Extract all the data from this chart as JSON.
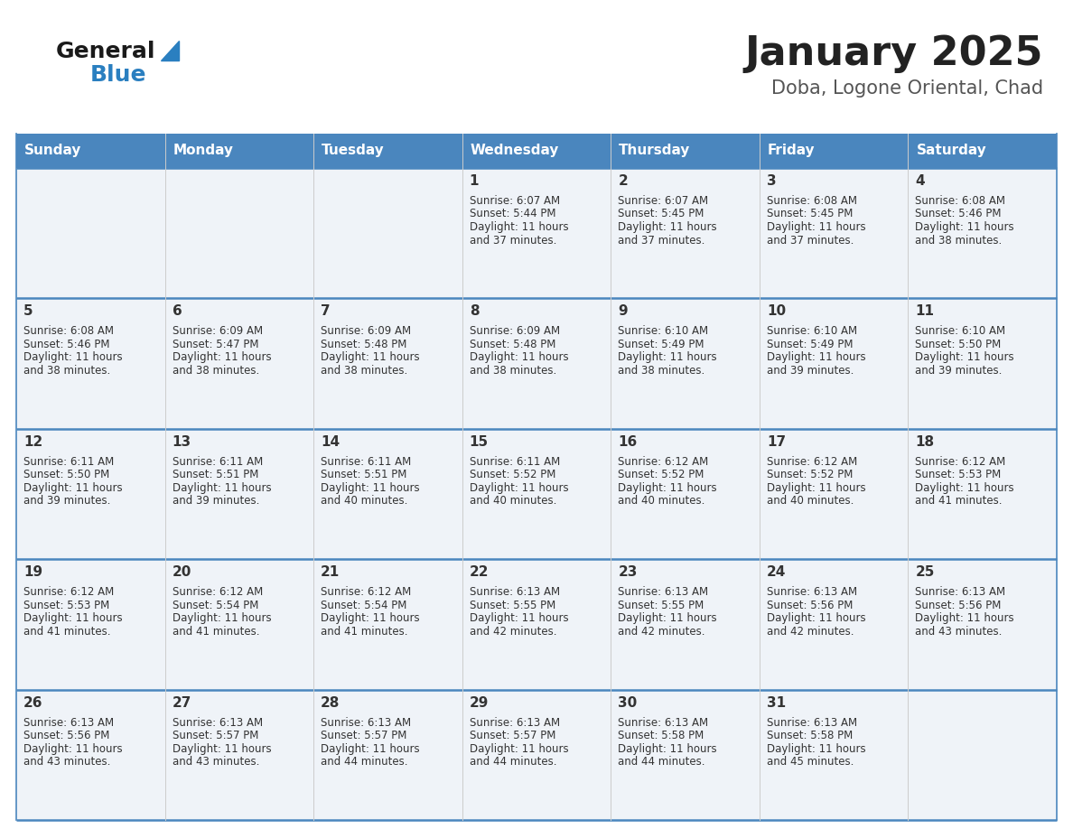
{
  "title": "January 2025",
  "subtitle": "Doba, Logone Oriental, Chad",
  "header_bg_color": "#4a86be",
  "header_text_color": "#ffffff",
  "cell_bg_color": "#eff3f8",
  "border_color": "#4a86be",
  "row_border_color": "#4a86be",
  "text_color": "#333333",
  "days_of_week": [
    "Sunday",
    "Monday",
    "Tuesday",
    "Wednesday",
    "Thursday",
    "Friday",
    "Saturday"
  ],
  "calendar_data": [
    [
      {
        "day": "",
        "sunrise": "",
        "sunset": "",
        "daylight1": "",
        "daylight2": ""
      },
      {
        "day": "",
        "sunrise": "",
        "sunset": "",
        "daylight1": "",
        "daylight2": ""
      },
      {
        "day": "",
        "sunrise": "",
        "sunset": "",
        "daylight1": "",
        "daylight2": ""
      },
      {
        "day": "1",
        "sunrise": "6:07 AM",
        "sunset": "5:44 PM",
        "daylight1": "11 hours",
        "daylight2": "and 37 minutes."
      },
      {
        "day": "2",
        "sunrise": "6:07 AM",
        "sunset": "5:45 PM",
        "daylight1": "11 hours",
        "daylight2": "and 37 minutes."
      },
      {
        "day": "3",
        "sunrise": "6:08 AM",
        "sunset": "5:45 PM",
        "daylight1": "11 hours",
        "daylight2": "and 37 minutes."
      },
      {
        "day": "4",
        "sunrise": "6:08 AM",
        "sunset": "5:46 PM",
        "daylight1": "11 hours",
        "daylight2": "and 38 minutes."
      }
    ],
    [
      {
        "day": "5",
        "sunrise": "6:08 AM",
        "sunset": "5:46 PM",
        "daylight1": "11 hours",
        "daylight2": "and 38 minutes."
      },
      {
        "day": "6",
        "sunrise": "6:09 AM",
        "sunset": "5:47 PM",
        "daylight1": "11 hours",
        "daylight2": "and 38 minutes."
      },
      {
        "day": "7",
        "sunrise": "6:09 AM",
        "sunset": "5:48 PM",
        "daylight1": "11 hours",
        "daylight2": "and 38 minutes."
      },
      {
        "day": "8",
        "sunrise": "6:09 AM",
        "sunset": "5:48 PM",
        "daylight1": "11 hours",
        "daylight2": "and 38 minutes."
      },
      {
        "day": "9",
        "sunrise": "6:10 AM",
        "sunset": "5:49 PM",
        "daylight1": "11 hours",
        "daylight2": "and 38 minutes."
      },
      {
        "day": "10",
        "sunrise": "6:10 AM",
        "sunset": "5:49 PM",
        "daylight1": "11 hours",
        "daylight2": "and 39 minutes."
      },
      {
        "day": "11",
        "sunrise": "6:10 AM",
        "sunset": "5:50 PM",
        "daylight1": "11 hours",
        "daylight2": "and 39 minutes."
      }
    ],
    [
      {
        "day": "12",
        "sunrise": "6:11 AM",
        "sunset": "5:50 PM",
        "daylight1": "11 hours",
        "daylight2": "and 39 minutes."
      },
      {
        "day": "13",
        "sunrise": "6:11 AM",
        "sunset": "5:51 PM",
        "daylight1": "11 hours",
        "daylight2": "and 39 minutes."
      },
      {
        "day": "14",
        "sunrise": "6:11 AM",
        "sunset": "5:51 PM",
        "daylight1": "11 hours",
        "daylight2": "and 40 minutes."
      },
      {
        "day": "15",
        "sunrise": "6:11 AM",
        "sunset": "5:52 PM",
        "daylight1": "11 hours",
        "daylight2": "and 40 minutes."
      },
      {
        "day": "16",
        "sunrise": "6:12 AM",
        "sunset": "5:52 PM",
        "daylight1": "11 hours",
        "daylight2": "and 40 minutes."
      },
      {
        "day": "17",
        "sunrise": "6:12 AM",
        "sunset": "5:52 PM",
        "daylight1": "11 hours",
        "daylight2": "and 40 minutes."
      },
      {
        "day": "18",
        "sunrise": "6:12 AM",
        "sunset": "5:53 PM",
        "daylight1": "11 hours",
        "daylight2": "and 41 minutes."
      }
    ],
    [
      {
        "day": "19",
        "sunrise": "6:12 AM",
        "sunset": "5:53 PM",
        "daylight1": "11 hours",
        "daylight2": "and 41 minutes."
      },
      {
        "day": "20",
        "sunrise": "6:12 AM",
        "sunset": "5:54 PM",
        "daylight1": "11 hours",
        "daylight2": "and 41 minutes."
      },
      {
        "day": "21",
        "sunrise": "6:12 AM",
        "sunset": "5:54 PM",
        "daylight1": "11 hours",
        "daylight2": "and 41 minutes."
      },
      {
        "day": "22",
        "sunrise": "6:13 AM",
        "sunset": "5:55 PM",
        "daylight1": "11 hours",
        "daylight2": "and 42 minutes."
      },
      {
        "day": "23",
        "sunrise": "6:13 AM",
        "sunset": "5:55 PM",
        "daylight1": "11 hours",
        "daylight2": "and 42 minutes."
      },
      {
        "day": "24",
        "sunrise": "6:13 AM",
        "sunset": "5:56 PM",
        "daylight1": "11 hours",
        "daylight2": "and 42 minutes."
      },
      {
        "day": "25",
        "sunrise": "6:13 AM",
        "sunset": "5:56 PM",
        "daylight1": "11 hours",
        "daylight2": "and 43 minutes."
      }
    ],
    [
      {
        "day": "26",
        "sunrise": "6:13 AM",
        "sunset": "5:56 PM",
        "daylight1": "11 hours",
        "daylight2": "and 43 minutes."
      },
      {
        "day": "27",
        "sunrise": "6:13 AM",
        "sunset": "5:57 PM",
        "daylight1": "11 hours",
        "daylight2": "and 43 minutes."
      },
      {
        "day": "28",
        "sunrise": "6:13 AM",
        "sunset": "5:57 PM",
        "daylight1": "11 hours",
        "daylight2": "and 44 minutes."
      },
      {
        "day": "29",
        "sunrise": "6:13 AM",
        "sunset": "5:57 PM",
        "daylight1": "11 hours",
        "daylight2": "and 44 minutes."
      },
      {
        "day": "30",
        "sunrise": "6:13 AM",
        "sunset": "5:58 PM",
        "daylight1": "11 hours",
        "daylight2": "and 44 minutes."
      },
      {
        "day": "31",
        "sunrise": "6:13 AM",
        "sunset": "5:58 PM",
        "daylight1": "11 hours",
        "daylight2": "and 45 minutes."
      },
      {
        "day": "",
        "sunrise": "",
        "sunset": "",
        "daylight1": "",
        "daylight2": ""
      }
    ]
  ],
  "logo_color_general": "#1a1a1a",
  "logo_color_blue": "#2a7fc0",
  "title_fontsize": 32,
  "subtitle_fontsize": 15,
  "header_fontsize": 11,
  "day_num_fontsize": 11,
  "cell_text_fontsize": 8.5
}
